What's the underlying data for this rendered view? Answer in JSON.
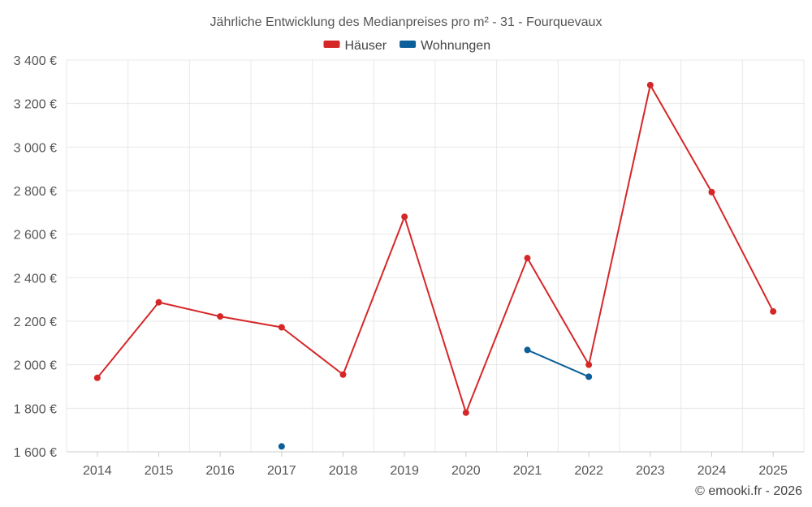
{
  "chart_data": {
    "type": "line",
    "title": "Jährliche Entwicklung des Medianpreises pro m² - 31 - Fourquevaux",
    "categories": [
      "2014",
      "2015",
      "2016",
      "2017",
      "2018",
      "2019",
      "2020",
      "2021",
      "2022",
      "2023",
      "2024",
      "2025"
    ],
    "series": [
      {
        "name": "Häuser",
        "color": "#d62728",
        "values": [
          1940,
          2287,
          2222,
          2172,
          1955,
          2680,
          1780,
          2490,
          2000,
          3285,
          2793,
          2245
        ]
      },
      {
        "name": "Wohnungen",
        "color": "#0d5f99",
        "values": [
          null,
          null,
          null,
          1625,
          null,
          null,
          null,
          2068,
          1945,
          null,
          null,
          null
        ]
      }
    ],
    "ylim": [
      1600,
      3400
    ],
    "yticks": [
      1600,
      1800,
      2000,
      2200,
      2400,
      2600,
      2800,
      3000,
      3200,
      3400
    ],
    "ytick_labels": [
      "1 600 €",
      "1 800 €",
      "2 000 €",
      "2 200 €",
      "2 400 €",
      "2 600 €",
      "2 800 €",
      "3 000 €",
      "3 200 €",
      "3 400 €"
    ],
    "xlabel": "",
    "ylabel": "",
    "grid": true,
    "legend_position": "top-center"
  },
  "credit": "© emooki.fr - 2026"
}
